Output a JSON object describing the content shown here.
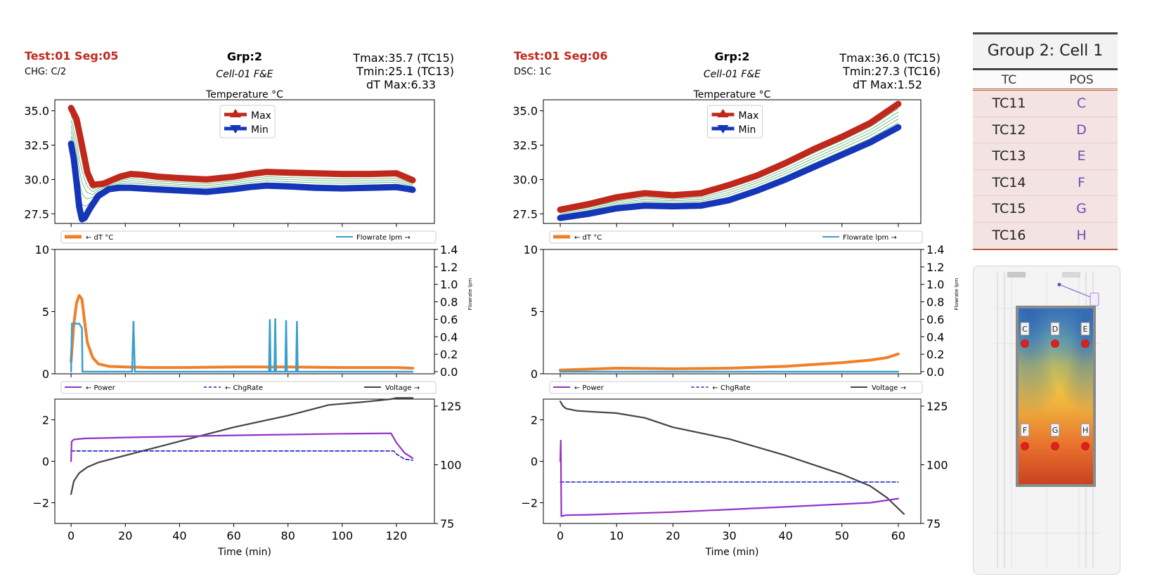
{
  "chart_data": [
    {
      "type": "line",
      "header": {
        "test": "Test:01 Seg:05",
        "mode": "CHG: C/2",
        "group": "Grp:2",
        "cell": "Cell-01 F&E",
        "tmax": "Tmax:35.7 (TC15)",
        "tmin": "Tmin:25.1 (TC13)",
        "dtmax": "dT Max:6.33"
      },
      "temperature": {
        "title": "Temperature °C",
        "ylim": [
          26.8,
          35.8
        ],
        "yticks": [
          "27.5",
          "30.0",
          "32.5",
          "35.0"
        ],
        "legend": [
          "Max",
          "Min"
        ],
        "legend_position": "top-center",
        "series": [
          {
            "name": "Max",
            "x": [
              0,
              2,
              4,
              6,
              8,
              12,
              18,
              22,
              26,
              32,
              40,
              50,
              60,
              66,
              72,
              80,
              90,
              100,
              110,
              120,
              126
            ],
            "y": [
              35.2,
              34.4,
              32.5,
              30.5,
              29.6,
              29.7,
              30.2,
              30.4,
              30.35,
              30.2,
              30.1,
              30.0,
              30.2,
              30.4,
              30.55,
              30.5,
              30.45,
              30.4,
              30.4,
              30.45,
              29.95
            ]
          },
          {
            "name": "Min",
            "x": [
              0,
              1,
              2,
              3,
              4,
              5,
              7,
              10,
              14,
              18,
              22,
              30,
              40,
              50,
              60,
              66,
              72,
              80,
              90,
              100,
              110,
              120,
              126
            ],
            "y": [
              32.6,
              31.5,
              29.8,
              28.0,
              27.1,
              27.2,
              27.9,
              28.8,
              29.3,
              29.4,
              29.4,
              29.3,
              29.2,
              29.1,
              29.3,
              29.45,
              29.55,
              29.5,
              29.4,
              29.35,
              29.4,
              29.45,
              29.25
            ]
          }
        ]
      },
      "dt_flow": {
        "ylim_left": [
          0,
          10
        ],
        "yticks_left": [
          "0",
          "5",
          "10"
        ],
        "ylim_right": [
          0,
          1.4
        ],
        "yticks_right": [
          "0.0",
          "0.2",
          "0.4",
          "0.6",
          "0.8",
          "1.0",
          "1.2",
          "1.4"
        ],
        "ylabel_right": "Flowrate lpm",
        "legend_left": "← dT °C",
        "legend_right": "Flowrate lpm →",
        "dT": {
          "x": [
            0,
            1,
            2,
            3,
            4,
            5,
            6,
            8,
            10,
            14,
            20,
            30,
            40,
            60,
            80,
            100,
            120,
            126
          ],
          "y": [
            1.0,
            4.0,
            5.7,
            6.3,
            6.0,
            4.2,
            2.5,
            1.3,
            0.8,
            0.6,
            0.55,
            0.5,
            0.5,
            0.55,
            0.55,
            0.5,
            0.5,
            0.45
          ]
        },
        "flow": {
          "x": [
            0,
            0.3,
            3,
            4,
            4.2,
            22.5,
            23,
            23.5,
            73,
            73.3,
            73.6,
            75,
            75.3,
            75.6,
            79,
            79.3,
            79.6,
            83,
            83.3,
            83.6,
            126
          ],
          "y": [
            0,
            0.55,
            0.55,
            0.5,
            0,
            0,
            0.58,
            0,
            0,
            0.6,
            0,
            0,
            0.61,
            0,
            0,
            0.59,
            0,
            0,
            0.58,
            0,
            0
          ]
        }
      },
      "power": {
        "ylim_left": [
          -3,
          3
        ],
        "yticks_left": [
          "−2",
          "0",
          "2"
        ],
        "ylim_right": [
          75,
          128
        ],
        "yticks_right": [
          "75",
          "100",
          "125"
        ],
        "xlim": [
          -6,
          134
        ],
        "xticks": [
          "0",
          "20",
          "40",
          "60",
          "80",
          "100",
          "120"
        ],
        "xlabel": "Time (min)",
        "legend": [
          "← Power",
          "← ChgRate",
          "Voltage →"
        ],
        "Power": {
          "x": [
            0,
            0.2,
            1,
            5,
            20,
            60,
            100,
            118,
            120,
            123,
            126
          ],
          "y": [
            0,
            0.95,
            1.05,
            1.1,
            1.15,
            1.25,
            1.33,
            1.35,
            0.9,
            0.4,
            0.15
          ]
        },
        "ChgRate": {
          "x": [
            0,
            119,
            120,
            123,
            126
          ],
          "y": [
            0.5,
            0.5,
            0.35,
            0.1,
            0.05
          ]
        },
        "Voltage": {
          "x": [
            0,
            1,
            3,
            6,
            10,
            20,
            40,
            60,
            80,
            90,
            95,
            100,
            110,
            118,
            120,
            126
          ],
          "y": [
            87.5,
            93,
            96.5,
            99,
            101,
            104,
            110,
            116,
            121,
            124,
            125.5,
            126,
            127,
            128,
            128.5,
            128.5
          ]
        }
      }
    },
    {
      "type": "line",
      "header": {
        "test": "Test:01 Seg:06",
        "mode": "DSC: 1C",
        "group": "Grp:2",
        "cell": "Cell-01 F&E",
        "tmax": "Tmax:36.0 (TC15)",
        "tmin": "Tmin:27.3 (TC16)",
        "dtmax": "dT Max:1.52"
      },
      "temperature": {
        "title": "Temperature °C",
        "ylim": [
          26.8,
          35.8
        ],
        "yticks": [
          "27.5",
          "30.0",
          "32.5",
          "35.0"
        ],
        "legend": [
          "Max",
          "Min"
        ],
        "legend_position": "top-center",
        "series": [
          {
            "name": "Max",
            "x": [
              0,
              5,
              10,
              15,
              20,
              25,
              30,
              35,
              40,
              45,
              50,
              55,
              60
            ],
            "y": [
              27.8,
              28.2,
              28.7,
              29.0,
              28.85,
              29.0,
              29.6,
              30.3,
              31.2,
              32.2,
              33.1,
              34.1,
              35.5
            ]
          },
          {
            "name": "Min",
            "x": [
              0,
              5,
              10,
              15,
              20,
              25,
              30,
              35,
              40,
              45,
              50,
              55,
              60
            ],
            "y": [
              27.2,
              27.5,
              27.9,
              28.1,
              28.05,
              28.1,
              28.5,
              29.2,
              30.0,
              30.9,
              31.8,
              32.7,
              33.8
            ]
          }
        ]
      },
      "dt_flow": {
        "ylim_left": [
          0,
          10
        ],
        "yticks_left": [
          "0",
          "5",
          "10"
        ],
        "ylim_right": [
          0,
          1.4
        ],
        "yticks_right": [
          "0.0",
          "0.2",
          "0.4",
          "0.6",
          "0.8",
          "1.0",
          "1.2",
          "1.4"
        ],
        "ylabel_right": "Flowrate lpm",
        "legend_left": "← dT °C",
        "legend_right": "Flowrate lpm →",
        "dT": {
          "x": [
            0,
            10,
            20,
            30,
            40,
            45,
            50,
            55,
            58,
            60
          ],
          "y": [
            0.3,
            0.45,
            0.4,
            0.45,
            0.6,
            0.75,
            0.9,
            1.1,
            1.3,
            1.6
          ]
        },
        "flow": {
          "x": [
            0,
            60
          ],
          "y": [
            0.0,
            0.0
          ]
        }
      },
      "power": {
        "ylim_left": [
          -3,
          3
        ],
        "yticks_left": [
          "−2",
          "0",
          "2"
        ],
        "ylim_right": [
          75,
          128
        ],
        "yticks_right": [
          "75",
          "100",
          "125"
        ],
        "xlim": [
          -3,
          64
        ],
        "xticks": [
          "0",
          "10",
          "20",
          "30",
          "40",
          "50",
          "60"
        ],
        "xlabel": "Time (min)",
        "legend": [
          "← Power",
          "← ChgRate",
          "Voltage →"
        ],
        "Power": {
          "x": [
            0,
            0.1,
            0.2,
            1,
            5,
            20,
            40,
            55,
            60
          ],
          "y": [
            0,
            1.0,
            -2.65,
            -2.6,
            -2.58,
            -2.45,
            -2.2,
            -2.0,
            -1.8
          ]
        },
        "ChgRate": {
          "x": [
            0,
            60
          ],
          "y": [
            -1.0,
            -1.0
          ]
        },
        "Voltage": {
          "x": [
            0,
            0.5,
            1,
            3,
            10,
            15,
            20,
            30,
            40,
            50,
            55,
            58,
            61
          ],
          "y": [
            127,
            125,
            124,
            123,
            122,
            120,
            116,
            111,
            104,
            96,
            91,
            86,
            79
          ]
        }
      }
    }
  ],
  "table": {
    "title": "Group 2: Cell 1",
    "columns": [
      "TC",
      "POS"
    ],
    "rows": [
      [
        "TC11",
        "C"
      ],
      [
        "TC12",
        "D"
      ],
      [
        "TC13",
        "E"
      ],
      [
        "TC14",
        "F"
      ],
      [
        "TC15",
        "G"
      ],
      [
        "TC16",
        "H"
      ]
    ]
  },
  "schematic": {
    "labels": [
      "C",
      "D",
      "E",
      "F",
      "G",
      "H"
    ]
  },
  "colors": {
    "max": "#c0281c",
    "min": "#1536b8",
    "dT": "#f07f28",
    "flow": "#3a9ecf",
    "power": "#9331c8",
    "chgrate": "#1c1cc8",
    "voltage": "#444444",
    "title_red": "#c0281c"
  }
}
